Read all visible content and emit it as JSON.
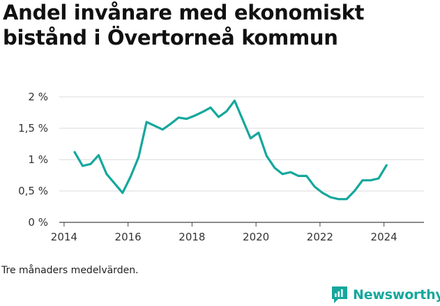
{
  "title": "Andel invånare med ekonomiskt bistånd i Övertorneå kommun",
  "note": "Tre månaders medelvärden.",
  "brand": {
    "name": "Newsworthy",
    "color": "#15a79c"
  },
  "chart_data": {
    "type": "line",
    "title": "Andel invånare med ekonomiskt bistånd i Övertorneå kommun",
    "xlabel": "",
    "ylabel": "",
    "xlim": [
      2013.85,
      2025.25
    ],
    "ylim": [
      0,
      2
    ],
    "x_ticks": [
      2014,
      2016,
      2018,
      2020,
      2022,
      2024
    ],
    "x_tick_labels": [
      "2014",
      "2016",
      "2018",
      "2020",
      "2022",
      "2024"
    ],
    "y_ticks": [
      0,
      0.5,
      1,
      1.5,
      2
    ],
    "y_tick_labels": [
      "0 %",
      "0,5 %",
      "1 %",
      "1,5 %",
      "2 %"
    ],
    "grid": true,
    "series_color": "#15a79c",
    "series": [
      {
        "x": [
          2014.33,
          2014.58,
          2014.83,
          2015.08,
          2015.33,
          2015.58,
          2015.83,
          2016.08,
          2016.33,
          2016.58,
          2016.83,
          2017.08,
          2017.33,
          2017.58,
          2017.83,
          2018.08,
          2018.33,
          2018.58,
          2018.83,
          2019.08,
          2019.33,
          2019.58,
          2019.83,
          2020.08,
          2020.33,
          2020.58,
          2020.83,
          2021.08,
          2021.33,
          2021.58,
          2021.83,
          2022.08,
          2022.33,
          2022.58,
          2022.83,
          2023.08,
          2023.33,
          2023.58,
          2023.83,
          2024.08
        ],
        "y": [
          1.12,
          0.9,
          0.93,
          1.07,
          0.77,
          0.62,
          0.47,
          0.73,
          1.04,
          1.6,
          1.54,
          1.48,
          1.57,
          1.67,
          1.65,
          1.7,
          1.76,
          1.83,
          1.68,
          1.77,
          1.94,
          1.64,
          1.34,
          1.43,
          1.06,
          0.87,
          0.77,
          0.8,
          0.74,
          0.74,
          0.57,
          0.47,
          0.4,
          0.37,
          0.37,
          0.5,
          0.67,
          0.67,
          0.7,
          0.91
        ]
      }
    ]
  }
}
